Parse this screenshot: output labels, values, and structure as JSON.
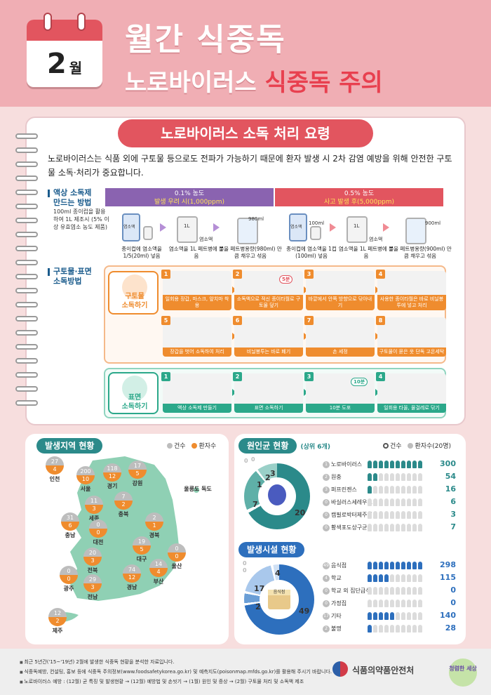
{
  "header": {
    "month_number": "2",
    "month_suffix": "월",
    "title_line1": "월간 식중독",
    "title_line2_a": "노로바이러스 ",
    "title_line2_b": "식중독 주의"
  },
  "disinfection": {
    "ribbon": "노로바이러스 소독 처리 요령",
    "intro": "노로바이러스는 식품 외에 구토물 등으로도 전파가 가능하기 때문에 환자 발생 시 2차 감염 예방을 위해 안전한 구토물 소독·처리가 중요합니다.",
    "section1_label_l1": "액상 소독제",
    "section1_label_l2": "만드는 방법",
    "section1_note": "100ml 종이컵을 활용하여 1L 제조시 (5% 이상 유효염소 농도 제품)",
    "col_left_top": "0.1% 농도",
    "col_left_bottom": "발생 우려 시(1,000ppm)",
    "col_right_top": "0.5% 농도",
    "col_right_bottom": "사고 발생 후(5,000ppm)",
    "bottle_label": "염소액",
    "liter_label": "1L",
    "ml_980": "980ml",
    "ml_100": "100ml",
    "ml_900": "900ml",
    "small_label": "염소액",
    "left_caps": [
      "종이컵에 염소액을 1/5(20ml) 넣음",
      "염소액을 1L 페트병에 부음",
      "물을 페트병용량(980ml) 만큼 채우고 섞음"
    ],
    "right_caps": [
      "종이컵에 염소액을 1컵(100ml) 넣음",
      "염소액을 1L 페트병에 부음",
      "물을 페트병용량(900ml) 만큼 채우고 섞음"
    ],
    "section2_label_l1": "구토물·표면",
    "section2_label_l2": "소독방법",
    "vomit_cat_l1": "구토물",
    "vomit_cat_l2": "소독하기",
    "vomit_steps": [
      {
        "n": "1",
        "text": "일회용 장갑, 마스크, 앞치마 착용"
      },
      {
        "n": "2",
        "text": "소독액으로 적신 종이타월로 구토물 덮기"
      },
      {
        "n": "3",
        "text": "바깥에서 안쪽 방향으로 닦아내기"
      },
      {
        "n": "4",
        "text": "사용한 종이타월은 바로 비닐봉투에 넣고 처리"
      },
      {
        "n": "5",
        "text": "장갑을 벗어 소독하여 처리"
      },
      {
        "n": "6",
        "text": "비닐봉투는 바로 폐기"
      },
      {
        "n": "7",
        "text": "손 세정"
      },
      {
        "n": "8",
        "text": "구토물이 묻은 옷 단독 고온세탁"
      }
    ],
    "step2_badge": "5분",
    "surface_cat_l1": "표면",
    "surface_cat_l2": "소독하기",
    "surface_steps": [
      {
        "n": "1",
        "text": "액상 소독제 만들기"
      },
      {
        "n": "2",
        "text": "표면 소독하기"
      },
      {
        "n": "3",
        "text": "10분 도포"
      },
      {
        "n": "4",
        "text": "일회용 타올, 물걸레로 닦기"
      }
    ],
    "timer_badge": "10분"
  },
  "region_stats": {
    "title": "발생지역 현황",
    "legend_cases": "건수",
    "legend_patients": "환자수",
    "regions": [
      {
        "name": "인천",
        "cases": "27",
        "patients": "4"
      },
      {
        "name": "서울",
        "cases": "200",
        "patients": "10"
      },
      {
        "name": "경기",
        "cases": "118",
        "patients": "12"
      },
      {
        "name": "강원",
        "cases": "17",
        "patients": "5"
      },
      {
        "name": "울릉도 독도",
        "cases": "",
        "patients": ""
      },
      {
        "name": "충북",
        "cases": "7",
        "patients": "2"
      },
      {
        "name": "세종",
        "cases": "11",
        "patients": "3"
      },
      {
        "name": "충남",
        "cases": "31",
        "patients": "6"
      },
      {
        "name": "대전",
        "cases": "0",
        "patients": "0"
      },
      {
        "name": "경북",
        "cases": "2",
        "patients": "1"
      },
      {
        "name": "대구",
        "cases": "19",
        "patients": "5"
      },
      {
        "name": "전북",
        "cases": "20",
        "patients": "3"
      },
      {
        "name": "울산",
        "cases": "0",
        "patients": "0"
      },
      {
        "name": "경남",
        "cases": "74",
        "patients": "12"
      },
      {
        "name": "부산",
        "cases": "14",
        "patients": "4"
      },
      {
        "name": "광주",
        "cases": "0",
        "patients": "0"
      },
      {
        "name": "전남",
        "cases": "29",
        "patients": "3"
      },
      {
        "name": "제주",
        "cases": "12",
        "patients": "2"
      }
    ]
  },
  "pathogen_stats": {
    "title": "원인균 현황",
    "subtitle": "(상위 6개)",
    "legend_cases": "건수",
    "legend_patients": "환자수(20명)",
    "pie_labels": [
      "0",
      "0",
      "3",
      "2",
      "1",
      "7",
      "20"
    ],
    "rows": [
      {
        "pin": "1",
        "name": "노로바이러스",
        "value": "300"
      },
      {
        "pin": "2",
        "name": "원충",
        "value": "54"
      },
      {
        "pin": "3",
        "name": "퍼프린젠스",
        "value": "16"
      },
      {
        "pin": "0",
        "name": "바실러스세레우스",
        "value": "6"
      },
      {
        "pin": "0",
        "name": "캠필로박터제주니",
        "value": "3"
      },
      {
        "pin": "0",
        "name": "황색포도상구균",
        "value": "7"
      }
    ],
    "chart_data": {
      "type": "pie",
      "title": "원인균 현황",
      "categories": [
        "노로바이러스",
        "원충",
        "퍼프린젠스",
        "바실러스세레우스",
        "캠필로박터제주니",
        "황색포도상구균"
      ],
      "series": [
        {
          "name": "환자수",
          "values": [
            300,
            54,
            16,
            6,
            3,
            7
          ]
        }
      ]
    }
  },
  "facility_stats": {
    "title": "발생시설 현황",
    "pie_labels": [
      "0",
      "0",
      "4",
      "17",
      "2",
      "49"
    ],
    "sign_text": "음식점",
    "rows": [
      {
        "pin": "49",
        "name": "음식점",
        "value": "298"
      },
      {
        "pin": "4",
        "name": "학교",
        "value": "115"
      },
      {
        "pin": "0",
        "name": "학교 외 집단급식",
        "value": "0"
      },
      {
        "pin": "0",
        "name": "가정집",
        "value": "0"
      },
      {
        "pin": "17",
        "name": "기타",
        "value": "140"
      },
      {
        "pin": "2",
        "name": "불명",
        "value": "28"
      }
    ],
    "chart_data": {
      "type": "pie",
      "title": "발생시설 현황",
      "categories": [
        "음식점",
        "학교",
        "학교 외 집단급식",
        "가정집",
        "기타",
        "불명"
      ],
      "series": [
        {
          "name": "환자수",
          "values": [
            298,
            115,
            0,
            0,
            140,
            28
          ]
        }
      ]
    }
  },
  "footer": {
    "line1": "최근 5년간('15~'19년) 2월에 발생한 식중독 현황을 분석한 자료입니다.",
    "line2": "식중독예방, 컨설팅, 홍보 등에 식중독 주의정보(www.foodsafetykorea.go.kr) 및 예측지도(poisonmap.mfds.go.kr)를 활용해 주시기 바랍니다.",
    "line3": "노로바이러스 예방 : (12월) 균 특징 및 발생현황 → (12월) 예방법 및 손씻기 → (1월) 원인 및 증상 → (2월) 구토물 처리 및 소독액 제조",
    "logo": "식품의약품안전처",
    "slogan": "청렴한 세상"
  },
  "colors": {
    "header_bg": "#f0aeb4",
    "accent_red": "#e2555f",
    "purple": "#8a63b0",
    "orange": "#ef8c2e",
    "teal": "#2b8a8a",
    "green": "#2ba88a",
    "navy": "#1a5b8c",
    "blue": "#2d6fbd"
  }
}
